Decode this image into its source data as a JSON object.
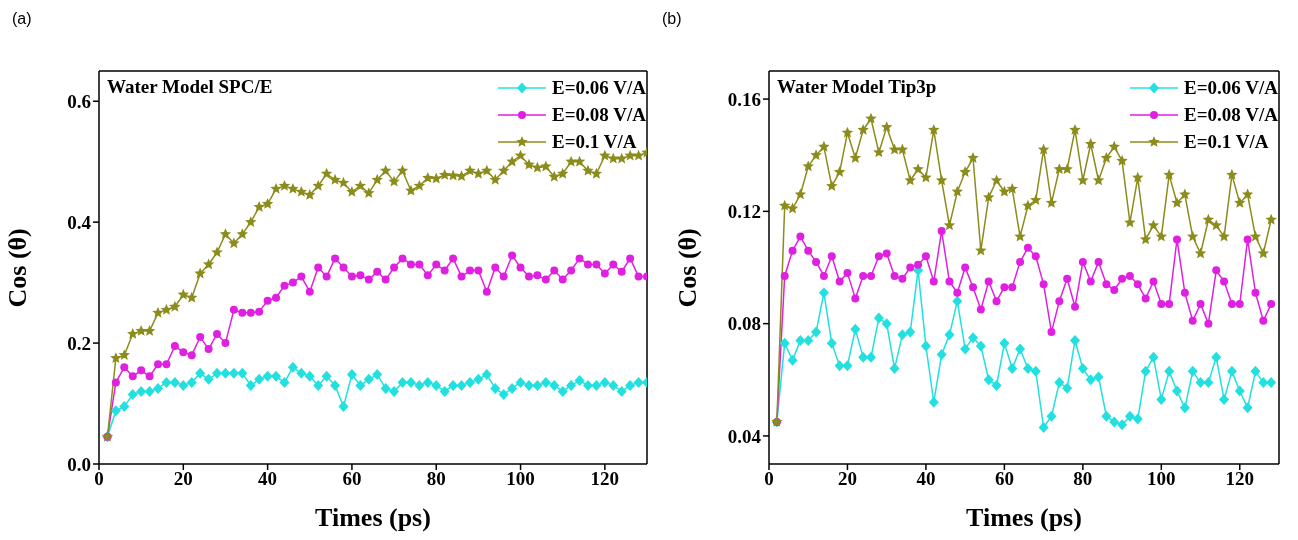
{
  "chart_data": [
    {
      "type": "line",
      "title": "Water Model SPC/E",
      "xlabel": "Times (ps)",
      "ylabel": "Cos (θ)",
      "annotations": [
        "(a)"
      ],
      "legend": "top right",
      "x": [
        2,
        4,
        6,
        8,
        10,
        12,
        14,
        16,
        18,
        20,
        22,
        24,
        26,
        28,
        30,
        32,
        34,
        36,
        38,
        40,
        42,
        44,
        46,
        48,
        50,
        52,
        54,
        56,
        58,
        60,
        62,
        64,
        66,
        68,
        70,
        72,
        74,
        76,
        78,
        80,
        82,
        84,
        86,
        88,
        90,
        92,
        94,
        96,
        98,
        100,
        102,
        104,
        106,
        108,
        110,
        112,
        114,
        116,
        118,
        120,
        122,
        124,
        126,
        128,
        130
      ],
      "xlim": [
        0,
        130
      ],
      "xticks": [
        0,
        20,
        40,
        60,
        80,
        100,
        120
      ],
      "ylim": [
        0,
        0.65
      ],
      "yticks": [
        {
          "value": 0,
          "label": "0.0"
        },
        0.2,
        0.4,
        0.6
      ],
      "series": [
        {
          "name": "E=0.06 V/A",
          "color": "#22e0e0",
          "marker": "diamond",
          "values": [
            0.045,
            0.088,
            0.095,
            0.115,
            0.12,
            0.12,
            0.125,
            0.135,
            0.135,
            0.13,
            0.135,
            0.15,
            0.14,
            0.15,
            0.15,
            0.15,
            0.15,
            0.13,
            0.14,
            0.145,
            0.145,
            0.135,
            0.16,
            0.15,
            0.145,
            0.13,
            0.145,
            0.13,
            0.095,
            0.148,
            0.13,
            0.14,
            0.148,
            0.125,
            0.12,
            0.135,
            0.135,
            0.13,
            0.135,
            0.13,
            0.12,
            0.13,
            0.13,
            0.135,
            0.14,
            0.148,
            0.125,
            0.115,
            0.125,
            0.135,
            0.13,
            0.13,
            0.135,
            0.13,
            0.12,
            0.13,
            0.138,
            0.13,
            0.13,
            0.135,
            0.13,
            0.12,
            0.13,
            0.135,
            0.135
          ]
        },
        {
          "name": "E=0.08 V/A",
          "color": "#e020e0",
          "marker": "circle",
          "values": [
            0.045,
            0.135,
            0.16,
            0.145,
            0.155,
            0.145,
            0.165,
            0.165,
            0.195,
            0.185,
            0.18,
            0.21,
            0.19,
            0.215,
            0.2,
            0.255,
            0.25,
            0.25,
            0.252,
            0.27,
            0.275,
            0.295,
            0.3,
            0.31,
            0.285,
            0.325,
            0.31,
            0.34,
            0.325,
            0.31,
            0.312,
            0.305,
            0.318,
            0.305,
            0.325,
            0.34,
            0.33,
            0.33,
            0.312,
            0.33,
            0.32,
            0.34,
            0.31,
            0.32,
            0.32,
            0.285,
            0.325,
            0.31,
            0.345,
            0.325,
            0.31,
            0.312,
            0.305,
            0.32,
            0.305,
            0.32,
            0.34,
            0.33,
            0.33,
            0.315,
            0.33,
            0.318,
            0.34,
            0.31,
            0.31
          ]
        },
        {
          "name": "E=0.1 V/A",
          "color": "#8c8c1c",
          "marker": "star",
          "values": [
            0.045,
            0.175,
            0.18,
            0.215,
            0.22,
            0.22,
            0.25,
            0.255,
            0.26,
            0.28,
            0.275,
            0.315,
            0.33,
            0.35,
            0.38,
            0.365,
            0.38,
            0.4,
            0.425,
            0.43,
            0.455,
            0.46,
            0.455,
            0.45,
            0.445,
            0.46,
            0.48,
            0.47,
            0.465,
            0.45,
            0.46,
            0.448,
            0.47,
            0.485,
            0.467,
            0.485,
            0.452,
            0.46,
            0.473,
            0.472,
            0.478,
            0.477,
            0.476,
            0.485,
            0.48,
            0.485,
            0.47,
            0.485,
            0.5,
            0.51,
            0.495,
            0.49,
            0.492,
            0.475,
            0.48,
            0.5,
            0.5,
            0.485,
            0.48,
            0.51,
            0.505,
            0.505,
            0.51,
            0.51,
            0.515
          ]
        }
      ]
    },
    {
      "type": "line",
      "title": "Water Model Tip3p",
      "xlabel": "Times (ps)",
      "ylabel": "Cos (θ)",
      "annotations": [
        "(b)"
      ],
      "legend": "top right",
      "x": [
        2,
        4,
        6,
        8,
        10,
        12,
        14,
        16,
        18,
        20,
        22,
        24,
        26,
        28,
        30,
        32,
        34,
        36,
        38,
        40,
        42,
        44,
        46,
        48,
        50,
        52,
        54,
        56,
        58,
        60,
        62,
        64,
        66,
        68,
        70,
        72,
        74,
        76,
        78,
        80,
        82,
        84,
        86,
        88,
        90,
        92,
        94,
        96,
        98,
        100,
        102,
        104,
        106,
        108,
        110,
        112,
        114,
        116,
        118,
        120,
        122,
        124,
        126,
        128
      ],
      "xlim": [
        0,
        130
      ],
      "xticks": [
        0,
        20,
        40,
        60,
        80,
        100,
        120
      ],
      "ylim": [
        0.03,
        0.17
      ],
      "yticks": [
        0.04,
        0.08,
        0.12,
        0.16
      ],
      "series": [
        {
          "name": "E=0.06 V/A",
          "color": "#22e0e0",
          "marker": "diamond",
          "values": [
            0.045,
            0.073,
            0.067,
            0.074,
            0.074,
            0.077,
            0.091,
            0.073,
            0.065,
            0.065,
            0.078,
            0.068,
            0.068,
            0.082,
            0.08,
            0.064,
            0.076,
            0.077,
            0.099,
            0.072,
            0.052,
            0.069,
            0.076,
            0.088,
            0.071,
            0.075,
            0.072,
            0.06,
            0.058,
            0.073,
            0.064,
            0.071,
            0.064,
            0.063,
            0.043,
            0.047,
            0.059,
            0.057,
            0.074,
            0.064,
            0.06,
            0.061,
            0.047,
            0.045,
            0.044,
            0.047,
            0.046,
            0.063,
            0.068,
            0.053,
            0.063,
            0.056,
            0.05,
            0.063,
            0.059,
            0.059,
            0.068,
            0.053,
            0.063,
            0.056,
            0.05,
            0.063,
            0.059,
            0.059
          ]
        },
        {
          "name": "E=0.08 V/A",
          "color": "#e020e0",
          "marker": "circle",
          "values": [
            0.045,
            0.097,
            0.106,
            0.111,
            0.106,
            0.102,
            0.097,
            0.104,
            0.095,
            0.098,
            0.089,
            0.097,
            0.097,
            0.104,
            0.105,
            0.097,
            0.096,
            0.1,
            0.101,
            0.104,
            0.095,
            0.113,
            0.095,
            0.091,
            0.1,
            0.093,
            0.085,
            0.095,
            0.088,
            0.093,
            0.093,
            0.102,
            0.107,
            0.104,
            0.094,
            0.077,
            0.088,
            0.096,
            0.086,
            0.102,
            0.095,
            0.102,
            0.094,
            0.092,
            0.096,
            0.097,
            0.094,
            0.089,
            0.095,
            0.087,
            0.087,
            0.11,
            0.091,
            0.081,
            0.087,
            0.08,
            0.099,
            0.095,
            0.087,
            0.087,
            0.11,
            0.091,
            0.081,
            0.087
          ]
        },
        {
          "name": "E=0.1 V/A",
          "color": "#8c8c1c",
          "marker": "star",
          "values": [
            0.045,
            0.122,
            0.121,
            0.126,
            0.136,
            0.14,
            0.143,
            0.129,
            0.134,
            0.148,
            0.139,
            0.149,
            0.153,
            0.141,
            0.15,
            0.142,
            0.142,
            0.131,
            0.135,
            0.132,
            0.149,
            0.131,
            0.115,
            0.127,
            0.134,
            0.139,
            0.106,
            0.125,
            0.131,
            0.127,
            0.128,
            0.111,
            0.122,
            0.124,
            0.142,
            0.123,
            0.135,
            0.135,
            0.149,
            0.131,
            0.144,
            0.131,
            0.139,
            0.143,
            0.138,
            0.116,
            0.132,
            0.11,
            0.115,
            0.111,
            0.133,
            0.123,
            0.126,
            0.111,
            0.105,
            0.117,
            0.115,
            0.111,
            0.133,
            0.123,
            0.126,
            0.111,
            0.105,
            0.117
          ]
        }
      ]
    }
  ]
}
